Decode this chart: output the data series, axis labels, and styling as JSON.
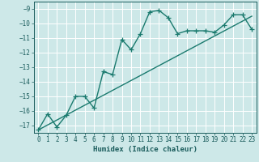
{
  "xlabel": "Humidex (Indice chaleur)",
  "ylabel": "",
  "background_color": "#cde8e8",
  "grid_color": "#ffffff",
  "line_color": "#1a7a6e",
  "xlim": [
    -0.5,
    23.5
  ],
  "ylim": [
    -17.5,
    -8.5
  ],
  "yticks": [
    -17,
    -16,
    -15,
    -14,
    -13,
    -12,
    -11,
    -10,
    -9
  ],
  "xticks": [
    0,
    1,
    2,
    3,
    4,
    5,
    6,
    7,
    8,
    9,
    10,
    11,
    12,
    13,
    14,
    15,
    16,
    17,
    18,
    19,
    20,
    21,
    22,
    23
  ],
  "series1_x": [
    0,
    1,
    2,
    3,
    4,
    5,
    6,
    7,
    8,
    9,
    10,
    11,
    12,
    13,
    14,
    15,
    16,
    17,
    18,
    19,
    20,
    21,
    22,
    23
  ],
  "series1_y": [
    -17.3,
    -16.2,
    -17.1,
    -16.3,
    -15.0,
    -15.0,
    -15.8,
    -13.3,
    -13.5,
    -11.1,
    -11.8,
    -10.7,
    -9.2,
    -9.1,
    -9.6,
    -10.7,
    -10.5,
    -10.5,
    -10.5,
    -10.6,
    -10.1,
    -9.4,
    -9.4,
    -10.4
  ],
  "series2_x": [
    0,
    23
  ],
  "series2_y": [
    -17.3,
    -9.5
  ],
  "marker": "+",
  "markersize": 4,
  "linewidth": 1.0,
  "tick_fontsize": 5.5,
  "xlabel_fontsize": 6.5
}
